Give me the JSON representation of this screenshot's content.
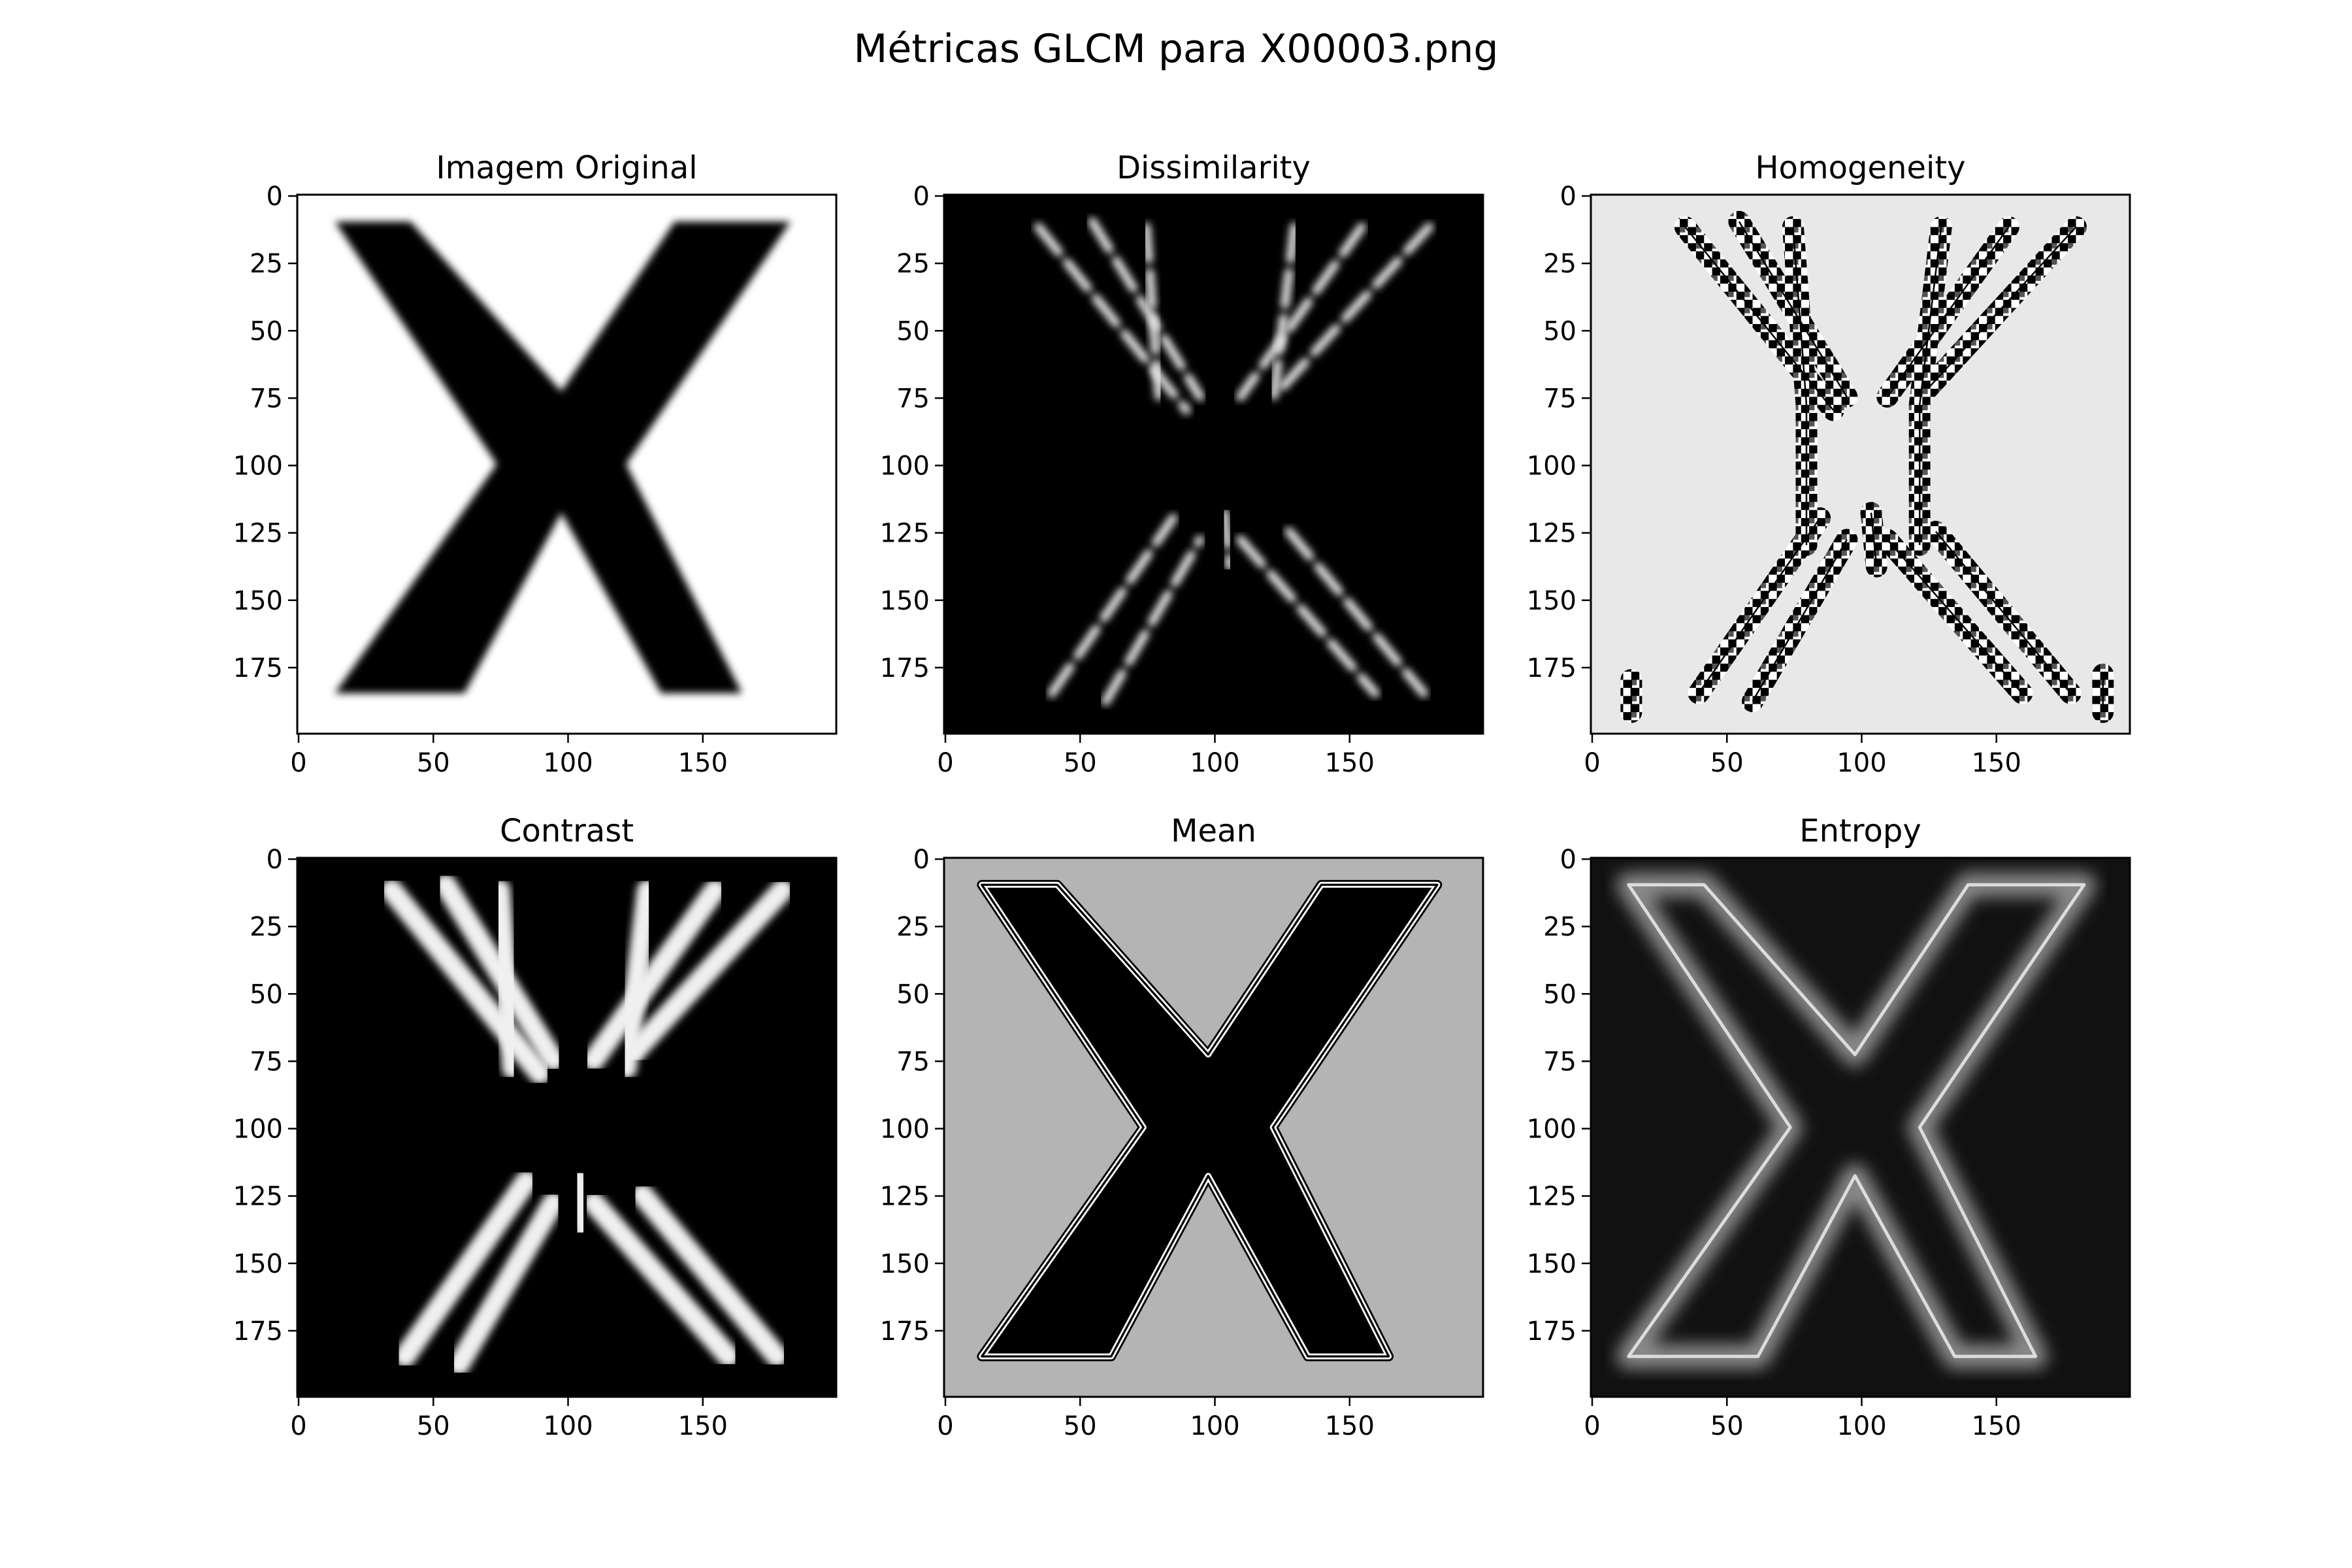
{
  "title": "Métricas GLCM para X00003.png",
  "chart_data": [
    {
      "type": "heatmap",
      "title": "Imagem Original",
      "colormap": "gray",
      "style": "original",
      "background": "#ffffff",
      "foreground": "#000000",
      "xticks": [
        "0",
        "50",
        "100",
        "150"
      ],
      "yticks": [
        "0",
        "25",
        "50",
        "75",
        "100",
        "125",
        "150",
        "175"
      ],
      "xlim": [
        0,
        200
      ],
      "ylim": [
        0,
        200
      ]
    },
    {
      "type": "heatmap",
      "title": "Dissimilarity",
      "colormap": "gray",
      "style": "edges",
      "background": "#000000",
      "foreground": "#e6e6e6",
      "xticks": [
        "0",
        "50",
        "100",
        "150"
      ],
      "yticks": [
        "0",
        "25",
        "50",
        "75",
        "100",
        "125",
        "150",
        "175"
      ],
      "xlim": [
        0,
        200
      ],
      "ylim": [
        0,
        200
      ]
    },
    {
      "type": "heatmap",
      "title": "Homogeneity",
      "colormap": "gray",
      "style": "noisy-edges",
      "background": "#e8e8e8",
      "foreground": "#000000",
      "xticks": [
        "0",
        "50",
        "100",
        "150"
      ],
      "yticks": [
        "0",
        "25",
        "50",
        "75",
        "100",
        "125",
        "150",
        "175"
      ],
      "xlim": [
        0,
        200
      ],
      "ylim": [
        0,
        200
      ]
    },
    {
      "type": "heatmap",
      "title": "Contrast",
      "colormap": "gray",
      "style": "thick-edges",
      "background": "#000000",
      "foreground": "#f0f0f0",
      "xticks": [
        "0",
        "50",
        "100",
        "150"
      ],
      "yticks": [
        "0",
        "25",
        "50",
        "75",
        "100",
        "125",
        "150",
        "175"
      ],
      "xlim": [
        0,
        200
      ],
      "ylim": [
        0,
        200
      ]
    },
    {
      "type": "heatmap",
      "title": "Mean",
      "colormap": "gray",
      "style": "outline",
      "background": "#b4b4b4",
      "foreground": "#000000",
      "xticks": [
        "0",
        "50",
        "100",
        "150"
      ],
      "yticks": [
        "0",
        "25",
        "50",
        "75",
        "100",
        "125",
        "150",
        "175"
      ],
      "xlim": [
        0,
        200
      ],
      "ylim": [
        0,
        200
      ]
    },
    {
      "type": "heatmap",
      "title": "Entropy",
      "colormap": "gray",
      "style": "glow-outline",
      "background": "#111111",
      "foreground": "#8a8a8a",
      "xticks": [
        "0",
        "50",
        "100",
        "150"
      ],
      "yticks": [
        "0",
        "25",
        "50",
        "75",
        "100",
        "125",
        "150",
        "175"
      ],
      "xlim": [
        0,
        200
      ],
      "ylim": [
        0,
        200
      ]
    }
  ]
}
